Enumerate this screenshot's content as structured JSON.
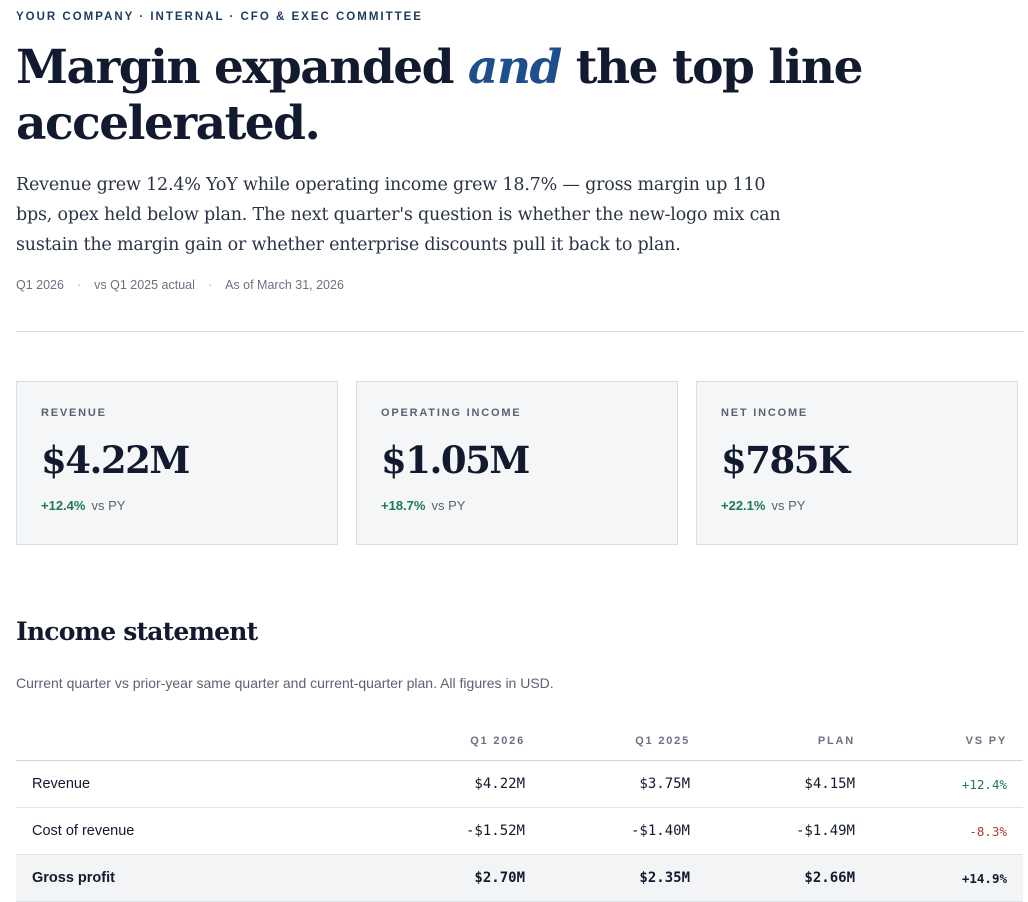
{
  "header": {
    "eyebrow": "YOUR COMPANY · INTERNAL · CFO & EXEC COMMITTEE",
    "headline_pre": "Margin expanded ",
    "headline_em": "and",
    "headline_post": " the top line accelerated.",
    "lede": "Revenue grew 12.4% YoY while operating income grew 18.7% — gross margin up 110 bps, opex held below plan. The next quarter's question is whether the new-logo mix can sustain the margin gain or whether enterprise discounts pull it back to plan.",
    "meta": {
      "period": "Q1 2026",
      "comparison": "vs Q1 2025 actual",
      "as_of": "As of March 31, 2026"
    }
  },
  "kpis": [
    {
      "label": "REVENUE",
      "value": "$4.22M",
      "delta": "+12.4%",
      "ref": "vs PY"
    },
    {
      "label": "OPERATING INCOME",
      "value": "$1.05M",
      "delta": "+18.7%",
      "ref": "vs PY"
    },
    {
      "label": "NET INCOME",
      "value": "$785K",
      "delta": "+22.1%",
      "ref": "vs PY"
    }
  ],
  "income_statement": {
    "title": "Income statement",
    "subtitle": "Current quarter vs prior-year same quarter and current-quarter plan. All figures in USD.",
    "columns": [
      "",
      "Q1 2026",
      "Q1 2025",
      "PLAN",
      "VS PY"
    ],
    "rows": [
      {
        "label": "Revenue",
        "current": "$4.22M",
        "prior": "$3.75M",
        "plan": "$4.15M",
        "vs_py": "+12.4%"
      },
      {
        "label": "Cost of revenue",
        "current": "-$1.52M",
        "prior": "-$1.40M",
        "plan": "-$1.49M",
        "vs_py": "-8.3%"
      },
      {
        "label": "Gross profit",
        "current": "$2.70M",
        "prior": "$2.35M",
        "plan": "$2.66M",
        "vs_py": "+14.9%"
      }
    ]
  },
  "colors": {
    "ink": "#111a2e",
    "accent": "#1f4e8c",
    "positive": "#1f7a4d",
    "negative": "#b23a3a",
    "card_bg": "#f5f6f8"
  }
}
